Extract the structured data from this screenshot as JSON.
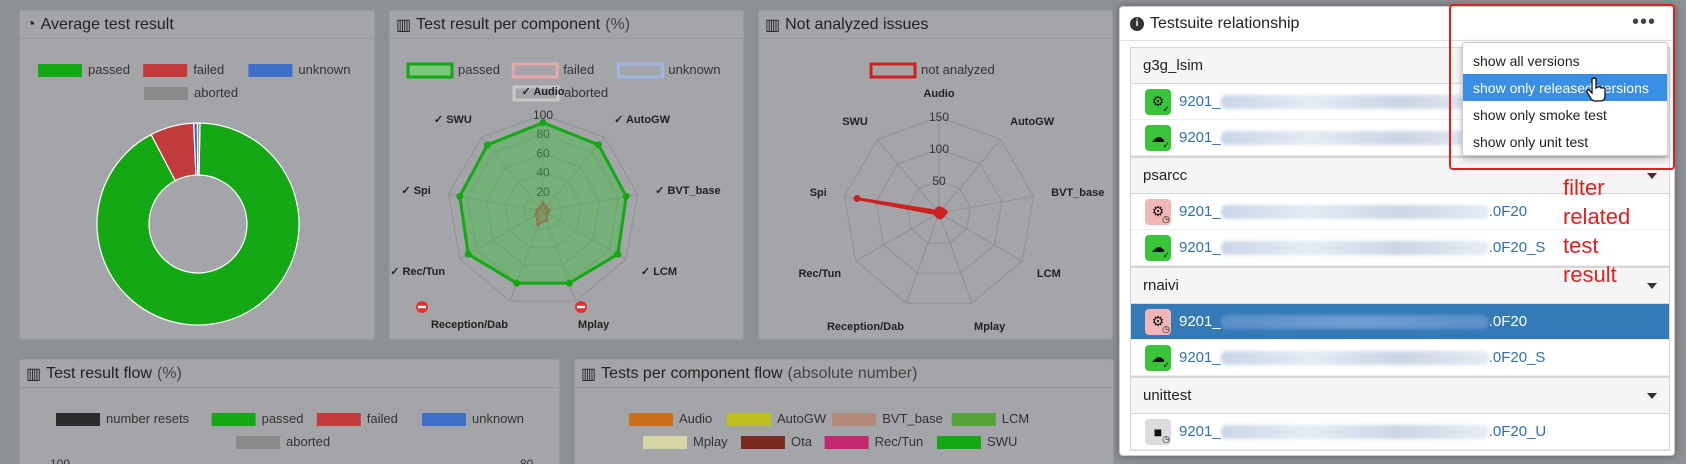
{
  "panels": {
    "avg": {
      "title": "Average test result",
      "icon": "pie-chart-icon",
      "legend": [
        "passed",
        "failed",
        "unknown",
        "aborted"
      ]
    },
    "per_component": {
      "title": "Test result per component",
      "suffix": "(%)",
      "icon": "bar-chart-icon",
      "legend": [
        "passed",
        "failed",
        "unknown",
        "aborted"
      ]
    },
    "not_analyzed": {
      "title": "Not analyzed issues",
      "icon": "bar-chart-icon",
      "legend": [
        "not analyzed"
      ]
    },
    "flow": {
      "title": "Test result flow",
      "suffix": "(%)",
      "icon": "bar-chart-icon",
      "legend": [
        "number resets",
        "passed",
        "failed",
        "unknown",
        "aborted"
      ],
      "left_tick": "100",
      "right_tick": "80"
    },
    "comp_flow": {
      "title": "Tests per component flow",
      "suffix": "(absolute number)",
      "icon": "bar-chart-icon",
      "legend": [
        "Audio",
        "AutoGW",
        "BVT_base",
        "LCM",
        "Mplay",
        "Ota",
        "Rec/Tun",
        "SWU"
      ]
    }
  },
  "colors": {
    "passed": "#14a814",
    "failed": "#c23b3b",
    "unknown": "#3e70c9",
    "aborted": "#8a8a8a",
    "resets": "#2b2b2b",
    "not_analyzed": "#cc2222",
    "comp_flow": [
      "#cc6f1a",
      "#bfbf1f",
      "#b38a7a",
      "#55a33a",
      "#d7d7a6",
      "#7a2b1f",
      "#c22770",
      "#14a814"
    ]
  },
  "chart_data": [
    {
      "type": "pie",
      "title": "Average test result",
      "series": [
        {
          "name": "passed",
          "value": 92
        },
        {
          "name": "failed",
          "value": 7
        },
        {
          "name": "unknown",
          "value": 0.6
        },
        {
          "name": "aborted",
          "value": 0.4
        }
      ]
    },
    {
      "type": "radar",
      "title": "Test result per component (%)",
      "axes": [
        "✓ Audio",
        "✓ AutoGW",
        "✓ BVT_base",
        "✓ LCM",
        "Mplay",
        "Reception/Dab",
        "✓ Rec/Tun",
        "✓ Spi",
        "✓ SWU"
      ],
      "ticks": [
        "20",
        "40",
        "60",
        "80",
        "100"
      ],
      "rmax": 100,
      "series": [
        {
          "name": "passed",
          "values": [
            92,
            90,
            88,
            90,
            80,
            80,
            90,
            88,
            90
          ]
        },
        {
          "name": "failed",
          "values": [
            8,
            5,
            6,
            5,
            10,
            15,
            8,
            6,
            5
          ]
        }
      ]
    },
    {
      "type": "radar",
      "title": "Not analyzed issues",
      "axes": [
        "Audio",
        "AutoGW",
        "BVT_base",
        "LCM",
        "Mplay",
        "Reception/Dab",
        "Rec/Tun",
        "Spi",
        "SWU"
      ],
      "ticks": [
        "50",
        "100",
        "150"
      ],
      "rmax": 150,
      "series": [
        {
          "name": "not analyzed",
          "values": [
            5,
            5,
            8,
            5,
            5,
            3,
            3,
            130,
            3
          ]
        }
      ]
    }
  ],
  "testsuite": {
    "title": "Testsuite relationship",
    "groups": [
      {
        "name": "g3g_lsim",
        "items": [
          {
            "prefix": "9201_",
            "suffix": "",
            "state": "green-dev"
          },
          {
            "prefix": "9201_",
            "suffix": "",
            "state": "green-cloud"
          }
        ]
      },
      {
        "name": "psarcc",
        "items": [
          {
            "prefix": "9201_",
            "suffix": ".0F20",
            "state": "red-dev"
          },
          {
            "prefix": "9201_",
            "suffix": ".0F20_S",
            "state": "green-cloud"
          }
        ]
      },
      {
        "name": "rnaivi",
        "items": [
          {
            "prefix": "9201_",
            "suffix": ".0F20",
            "state": "red-dev",
            "selected": true
          },
          {
            "prefix": "9201_",
            "suffix": ".0F20_S",
            "state": "green-cloud"
          }
        ]
      },
      {
        "name": "unittest",
        "items": [
          {
            "prefix": "9201_",
            "suffix": ".0F20_U",
            "state": "gray-box"
          }
        ]
      }
    ],
    "menu": [
      "show all versions",
      "show only released versions",
      "show only smoke test",
      "show only unit test"
    ],
    "menu_active": 1
  },
  "annotation": [
    "filter",
    "related",
    "test",
    "result"
  ]
}
